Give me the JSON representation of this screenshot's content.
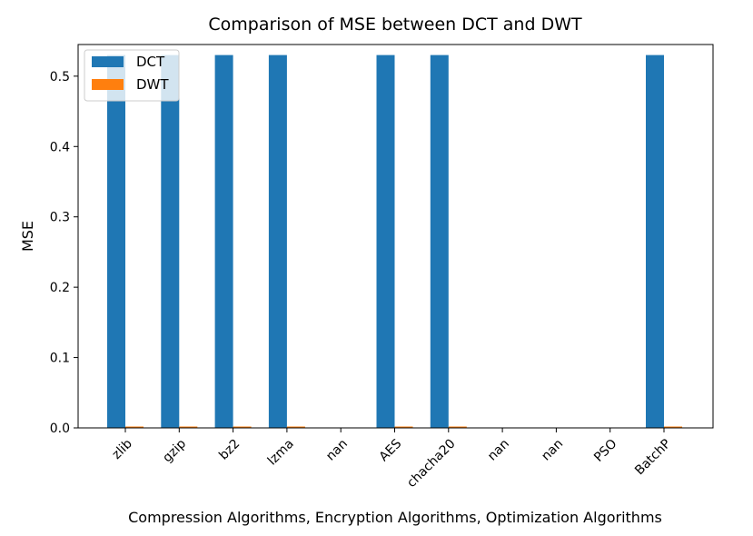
{
  "chart_data": {
    "type": "bar",
    "title": "Comparison of MSE between DCT and DWT",
    "xlabel": "Compression Algorithms,  Encryption Algorithms,  Optimization Algorithms",
    "ylabel": "MSE",
    "categories": [
      "zlib",
      "gzip",
      "bz2",
      "lzma",
      "nan",
      "AES",
      "chacha20",
      "nan",
      "nan",
      "PSO",
      "BatchP"
    ],
    "series": [
      {
        "name": "DCT",
        "color": "#1f77b4",
        "values": [
          0.53,
          0.53,
          0.53,
          0.53,
          0,
          0.53,
          0.53,
          0,
          0,
          0,
          0.53
        ]
      },
      {
        "name": "DWT",
        "color": "#ff7f0e",
        "values": [
          0.002,
          0.002,
          0.002,
          0.002,
          0,
          0.002,
          0.002,
          0,
          0,
          0,
          0.002
        ]
      }
    ],
    "ylim": [
      0,
      0.545
    ],
    "yticks": [
      "0.0",
      "0.1",
      "0.2",
      "0.3",
      "0.4",
      "0.5"
    ],
    "legend_position": "top-left",
    "grid": false
  }
}
